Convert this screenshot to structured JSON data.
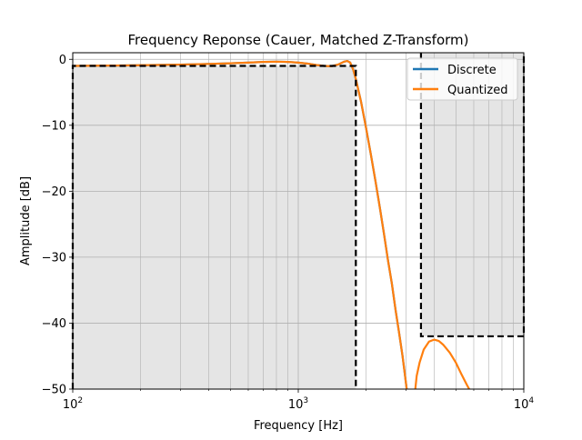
{
  "chart_data": {
    "type": "line",
    "title": "Frequency Reponse (Cauer, Matched Z-Transform)",
    "xlabel": "Frequency [Hz]",
    "ylabel": "Amplitude [dB]",
    "xscale": "log",
    "xlim": [
      100,
      10000
    ],
    "ylim": [
      -50,
      1
    ],
    "grid": true,
    "legend_position": "top-right",
    "x_ticks": [
      {
        "value": 100,
        "base": "10",
        "exp": "2"
      },
      {
        "value": 1000,
        "base": "10",
        "exp": "3"
      },
      {
        "value": 10000,
        "base": "10",
        "exp": "4"
      }
    ],
    "y_ticks": [
      {
        "value": 0,
        "label": "0"
      },
      {
        "value": -10,
        "label": "−10"
      },
      {
        "value": -20,
        "label": "−20"
      },
      {
        "value": -30,
        "label": "−30"
      },
      {
        "value": -40,
        "label": "−40"
      },
      {
        "value": -50,
        "label": "−50"
      }
    ],
    "passband_spec": {
      "f_edge": 1800,
      "min_gain_db": -1
    },
    "stopband_spec": {
      "f_edge": 3500,
      "max_gain_db": -42
    },
    "series": [
      {
        "name": "Discrete",
        "color": "#1f77b4",
        "x": [
          100,
          150,
          200,
          300,
          400,
          500,
          600,
          700,
          800,
          900,
          1000,
          1100,
          1200,
          1300,
          1400,
          1500,
          1600,
          1650,
          1700,
          1750,
          1800,
          1900,
          2000,
          2100,
          2200,
          2300,
          2400,
          2500,
          2600,
          2700,
          2800,
          2900,
          2950,
          3000,
          3050
        ],
        "y": [
          -1.0,
          -0.95,
          -0.9,
          -0.8,
          -0.7,
          -0.6,
          -0.5,
          -0.4,
          -0.35,
          -0.4,
          -0.5,
          -0.65,
          -0.85,
          -1.0,
          -1.05,
          -0.8,
          -0.35,
          -0.25,
          -0.5,
          -1.5,
          -3.0,
          -6.5,
          -10.5,
          -14.5,
          -18.5,
          -22.5,
          -26.5,
          -30.5,
          -34.0,
          -38.0,
          -41.5,
          -45.0,
          -47.0,
          -49.0,
          -51.0
        ]
      },
      {
        "name": "Quantized",
        "color": "#ff7f0e",
        "x": [
          100,
          150,
          200,
          300,
          400,
          500,
          600,
          700,
          800,
          900,
          1000,
          1100,
          1200,
          1300,
          1400,
          1500,
          1600,
          1650,
          1700,
          1750,
          1800,
          1900,
          2000,
          2100,
          2200,
          2300,
          2400,
          2500,
          2600,
          2700,
          2800,
          2900,
          2950,
          3000,
          3050
        ],
        "y": [
          -1.0,
          -0.95,
          -0.9,
          -0.8,
          -0.7,
          -0.6,
          -0.5,
          -0.4,
          -0.35,
          -0.4,
          -0.5,
          -0.65,
          -0.85,
          -1.0,
          -1.05,
          -0.8,
          -0.35,
          -0.25,
          -0.5,
          -1.5,
          -3.0,
          -6.5,
          -10.5,
          -14.5,
          -18.5,
          -22.5,
          -26.5,
          -30.5,
          -34.0,
          -38.0,
          -41.5,
          -45.0,
          -47.0,
          -49.0,
          -51.0
        ]
      },
      {
        "name": "",
        "color": "#ff7f0e",
        "x": [
          3280,
          3350,
          3450,
          3600,
          3800,
          4000,
          4200,
          4400,
          4700,
          5000,
          5300,
          5600,
          5900,
          6050
        ],
        "y": [
          -51.0,
          -48.0,
          -46.0,
          -44.0,
          -42.8,
          -42.5,
          -42.7,
          -43.3,
          -44.5,
          -46.0,
          -47.8,
          -49.4,
          -50.8,
          -51.5
        ]
      }
    ]
  }
}
